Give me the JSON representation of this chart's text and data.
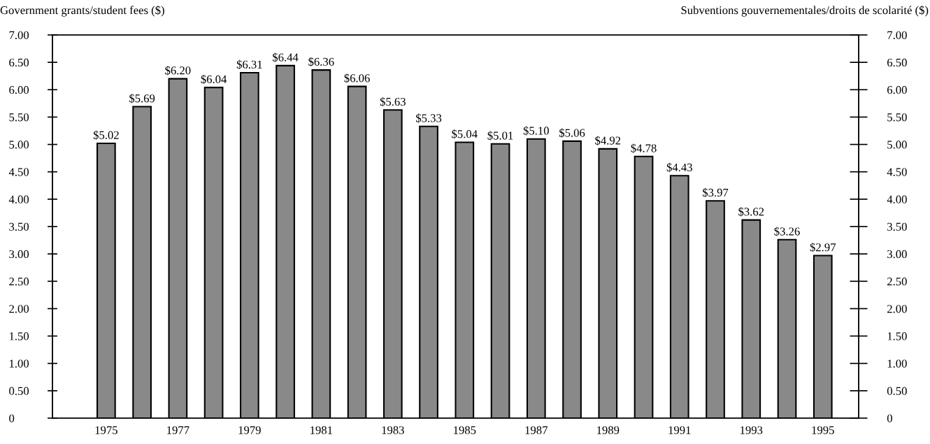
{
  "chart_data": {
    "type": "bar",
    "ylabel": "Government grants/student fees ($)",
    "y2label": "Subventions gouvernementales/droits de scolarité ($)",
    "categories": [
      "1975",
      null,
      "1977",
      null,
      "1979",
      null,
      "1981",
      null,
      "1983",
      null,
      "1985",
      null,
      "1987",
      null,
      "1989",
      null,
      "1991",
      null,
      "1993",
      null,
      "1995"
    ],
    "values": [
      5.02,
      5.69,
      6.2,
      6.04,
      6.31,
      6.44,
      6.36,
      6.06,
      5.63,
      5.33,
      5.04,
      5.01,
      5.1,
      5.06,
      4.92,
      4.78,
      4.43,
      3.97,
      3.62,
      3.26,
      2.97
    ],
    "value_labels": [
      "$5.02",
      "$5.69",
      "$6.20",
      "$6.04",
      "$6.31",
      "$6.44",
      "$6.36",
      "$6.06",
      "$5.63",
      "$5.33",
      "$5.04",
      "$5.01",
      "$5.10",
      "$5.06",
      "$4.92",
      "$4.78",
      "$4.43",
      "$3.97",
      "$3.62",
      "$3.26",
      "$2.97"
    ],
    "color": "#898989",
    "ylim": [
      0,
      7
    ],
    "yticks": [
      0,
      {
        "value": 0.5,
        "label": "0.50"
      },
      {
        "value": 1,
        "label": "1.00"
      },
      {
        "value": 1.5,
        "label": "1.50"
      },
      {
        "value": 2,
        "label": "2.00"
      },
      {
        "value": 2.5,
        "label": "2.50"
      },
      {
        "value": 3,
        "label": "3.00"
      },
      {
        "value": 3.5,
        "label": "3.50"
      },
      {
        "value": 4,
        "label": "4.00"
      },
      {
        "value": 4.5,
        "label": "4.50"
      },
      {
        "value": 5,
        "label": "5.00"
      },
      {
        "value": 5.5,
        "label": "5.50"
      },
      {
        "value": 6,
        "label": "6.00"
      },
      {
        "value": 6.5,
        "label": "6.50"
      },
      {
        "value": 7,
        "label": "7.00"
      }
    ],
    "y2lim": [
      0,
      7
    ],
    "y2ticks": [
      0,
      {
        "value": 0.5,
        "label": "0.50"
      },
      {
        "value": 1,
        "label": "1.00"
      },
      {
        "value": 1.5,
        "label": "1.50"
      },
      {
        "value": 2,
        "label": "2.00"
      },
      {
        "value": 2.5,
        "label": "2.50"
      },
      {
        "value": 3,
        "label": "3.00"
      },
      {
        "value": 3.5,
        "label": "3.50"
      },
      {
        "value": 4,
        "label": "4.00"
      },
      {
        "value": 4.5,
        "label": "4.50"
      },
      {
        "value": 5,
        "label": "5.00"
      },
      {
        "value": 5.5,
        "label": "5.50"
      },
      {
        "value": 6,
        "label": "6.00"
      },
      {
        "value": 6.5,
        "label": "6.50"
      },
      {
        "value": 7,
        "label": "7.00"
      }
    ],
    "grid": false,
    "legend": false
  }
}
